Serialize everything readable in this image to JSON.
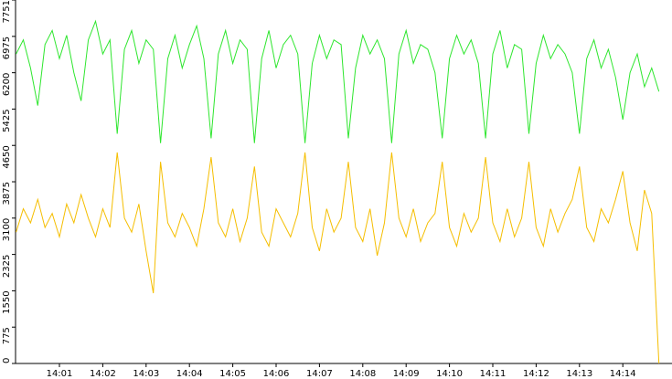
{
  "chart_data": {
    "type": "line",
    "categories": [
      null,
      null,
      null,
      null,
      null,
      null,
      "14:01",
      null,
      null,
      null,
      null,
      null,
      "14:02",
      null,
      null,
      null,
      null,
      null,
      "14:03",
      null,
      null,
      null,
      null,
      null,
      "14:04",
      null,
      null,
      null,
      null,
      null,
      "14:05",
      null,
      null,
      null,
      null,
      null,
      "14:06",
      null,
      null,
      null,
      null,
      null,
      "14:07",
      null,
      null,
      null,
      null,
      null,
      "14:08",
      null,
      null,
      null,
      null,
      null,
      "14:09",
      null,
      null,
      null,
      null,
      null,
      "14:10",
      null,
      null,
      null,
      null,
      null,
      "14:11",
      null,
      null,
      null,
      null,
      null,
      "14:12",
      null,
      null,
      null,
      null,
      null,
      "14:13",
      null,
      null,
      null,
      null,
      null,
      "14:14",
      null,
      null,
      null,
      null,
      null
    ],
    "series": [
      {
        "color": "#2ee62e",
        "values": [
          6600,
          6900,
          6300,
          5500,
          6800,
          7100,
          6500,
          7000,
          6200,
          5600,
          6900,
          7300,
          6600,
          6900,
          4900,
          6700,
          7100,
          6400,
          6900,
          6700,
          4700,
          6500,
          7000,
          6300,
          6800,
          7200,
          6500,
          4800,
          6600,
          7100,
          6400,
          6900,
          6700,
          4700,
          6500,
          7100,
          6300,
          6800,
          7000,
          6600,
          4700,
          6400,
          7000,
          6500,
          6900,
          6800,
          4800,
          6300,
          7000,
          6600,
          6900,
          6500,
          4700,
          6600,
          7100,
          6400,
          6800,
          6700,
          6200,
          4800,
          6500,
          7000,
          6600,
          6900,
          6400,
          4800,
          6600,
          7100,
          6300,
          6800,
          6700,
          4900,
          6400,
          7000,
          6500,
          6800,
          6600,
          6200,
          4900,
          6500,
          6900,
          6300,
          6700,
          6100,
          5200,
          6200,
          6600,
          5900,
          6300,
          5800
        ]
      },
      {
        "color": "#f5be00",
        "values": [
          2800,
          3300,
          3000,
          3500,
          2900,
          3200,
          2700,
          3400,
          3000,
          3600,
          3100,
          2700,
          3300,
          2900,
          4500,
          3100,
          2800,
          3400,
          2400,
          1500,
          4300,
          3000,
          2700,
          3200,
          2900,
          2500,
          3300,
          4400,
          3000,
          2700,
          3300,
          2600,
          3100,
          4200,
          2800,
          2500,
          3300,
          3000,
          2700,
          3200,
          4500,
          2900,
          2400,
          3300,
          2800,
          3100,
          4300,
          2900,
          2600,
          3300,
          2300,
          3000,
          4500,
          3100,
          2700,
          3300,
          2600,
          3000,
          3200,
          4300,
          2900,
          2500,
          3200,
          2800,
          3100,
          4400,
          3000,
          2600,
          3300,
          2700,
          3100,
          4300,
          2900,
          2500,
          3300,
          2800,
          3200,
          3500,
          4200,
          2900,
          2600,
          3300,
          3000,
          3500,
          4100,
          3000,
          2400,
          3700,
          3200,
          0
        ]
      }
    ],
    "ylim": [
      0,
      7751
    ],
    "yticks": [
      0,
      775,
      1550,
      2325,
      3100,
      3875,
      4650,
      5425,
      6200,
      6975,
      7751
    ]
  }
}
